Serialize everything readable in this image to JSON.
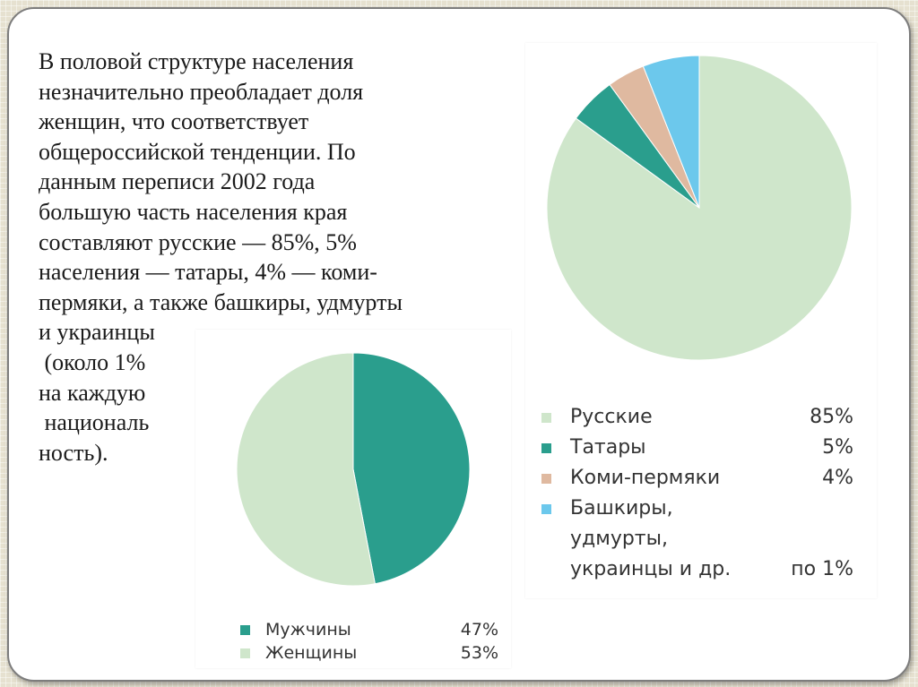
{
  "slide": {
    "text": "В половой структуре населения\nнезначительно преобладает доля\nженщин, что соответствует\nобщероссийской тенденции. По\nданным переписи 2002 года\nбольшую часть населения края\nсоставляют русские — 85%, 5%\nнаселения — татары, 4% — коми-\nпермяки, а также башкиры, удмурты\nи украинцы\n (около 1%\nна каждую\n националь\nность)."
  },
  "chart_data": [
    {
      "type": "pie",
      "title": "",
      "slices": [
        {
          "label": "Русские",
          "value": 85,
          "value_label": "85%",
          "color": "#cfe6cb"
        },
        {
          "label": "Татары",
          "value": 5,
          "value_label": "5%",
          "color": "#2a9e8d"
        },
        {
          "label": "Коми-пермяки",
          "value": 4,
          "value_label": "4%",
          "color": "#dfb9a0"
        },
        {
          "label": "Башкиры,\nудмурты,\nукраинцы и др.",
          "value": 6,
          "value_label": "по 1%",
          "color": "#6cc8ec"
        }
      ],
      "legend": "bottom"
    },
    {
      "type": "pie",
      "title": "",
      "slices": [
        {
          "label": "Мужчины",
          "value": 47,
          "value_label": "47%",
          "color": "#2a9e8d"
        },
        {
          "label": "Женщины",
          "value": 53,
          "value_label": "53%",
          "color": "#cfe6cb"
        }
      ],
      "legend": "bottom"
    }
  ]
}
